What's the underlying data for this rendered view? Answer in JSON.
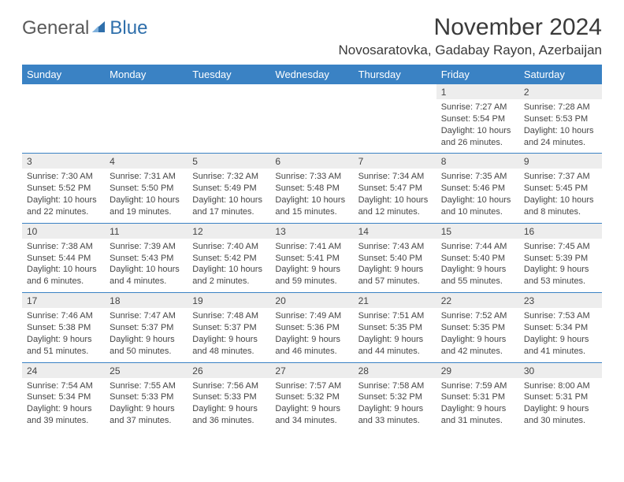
{
  "logo": {
    "word1": "General",
    "word2": "Blue"
  },
  "header": {
    "title": "November 2024",
    "location": "Novosaratovka, Gadabay Rayon, Azerbaijan"
  },
  "colors": {
    "header_bg": "#3a82c4",
    "header_text": "#ffffff",
    "daynum_bg": "#ededed",
    "border": "#3a82c4",
    "body_text": "#454545",
    "logo_gray": "#5a5a5a",
    "logo_blue": "#2f6fab"
  },
  "columns": [
    "Sunday",
    "Monday",
    "Tuesday",
    "Wednesday",
    "Thursday",
    "Friday",
    "Saturday"
  ],
  "weeks": [
    [
      {
        "blank": true
      },
      {
        "blank": true
      },
      {
        "blank": true
      },
      {
        "blank": true
      },
      {
        "blank": true
      },
      {
        "n": "1",
        "sunrise": "Sunrise: 7:27 AM",
        "sunset": "Sunset: 5:54 PM",
        "dl1": "Daylight: 10 hours",
        "dl2": "and 26 minutes."
      },
      {
        "n": "2",
        "sunrise": "Sunrise: 7:28 AM",
        "sunset": "Sunset: 5:53 PM",
        "dl1": "Daylight: 10 hours",
        "dl2": "and 24 minutes."
      }
    ],
    [
      {
        "n": "3",
        "sunrise": "Sunrise: 7:30 AM",
        "sunset": "Sunset: 5:52 PM",
        "dl1": "Daylight: 10 hours",
        "dl2": "and 22 minutes."
      },
      {
        "n": "4",
        "sunrise": "Sunrise: 7:31 AM",
        "sunset": "Sunset: 5:50 PM",
        "dl1": "Daylight: 10 hours",
        "dl2": "and 19 minutes."
      },
      {
        "n": "5",
        "sunrise": "Sunrise: 7:32 AM",
        "sunset": "Sunset: 5:49 PM",
        "dl1": "Daylight: 10 hours",
        "dl2": "and 17 minutes."
      },
      {
        "n": "6",
        "sunrise": "Sunrise: 7:33 AM",
        "sunset": "Sunset: 5:48 PM",
        "dl1": "Daylight: 10 hours",
        "dl2": "and 15 minutes."
      },
      {
        "n": "7",
        "sunrise": "Sunrise: 7:34 AM",
        "sunset": "Sunset: 5:47 PM",
        "dl1": "Daylight: 10 hours",
        "dl2": "and 12 minutes."
      },
      {
        "n": "8",
        "sunrise": "Sunrise: 7:35 AM",
        "sunset": "Sunset: 5:46 PM",
        "dl1": "Daylight: 10 hours",
        "dl2": "and 10 minutes."
      },
      {
        "n": "9",
        "sunrise": "Sunrise: 7:37 AM",
        "sunset": "Sunset: 5:45 PM",
        "dl1": "Daylight: 10 hours",
        "dl2": "and 8 minutes."
      }
    ],
    [
      {
        "n": "10",
        "sunrise": "Sunrise: 7:38 AM",
        "sunset": "Sunset: 5:44 PM",
        "dl1": "Daylight: 10 hours",
        "dl2": "and 6 minutes."
      },
      {
        "n": "11",
        "sunrise": "Sunrise: 7:39 AM",
        "sunset": "Sunset: 5:43 PM",
        "dl1": "Daylight: 10 hours",
        "dl2": "and 4 minutes."
      },
      {
        "n": "12",
        "sunrise": "Sunrise: 7:40 AM",
        "sunset": "Sunset: 5:42 PM",
        "dl1": "Daylight: 10 hours",
        "dl2": "and 2 minutes."
      },
      {
        "n": "13",
        "sunrise": "Sunrise: 7:41 AM",
        "sunset": "Sunset: 5:41 PM",
        "dl1": "Daylight: 9 hours",
        "dl2": "and 59 minutes."
      },
      {
        "n": "14",
        "sunrise": "Sunrise: 7:43 AM",
        "sunset": "Sunset: 5:40 PM",
        "dl1": "Daylight: 9 hours",
        "dl2": "and 57 minutes."
      },
      {
        "n": "15",
        "sunrise": "Sunrise: 7:44 AM",
        "sunset": "Sunset: 5:40 PM",
        "dl1": "Daylight: 9 hours",
        "dl2": "and 55 minutes."
      },
      {
        "n": "16",
        "sunrise": "Sunrise: 7:45 AM",
        "sunset": "Sunset: 5:39 PM",
        "dl1": "Daylight: 9 hours",
        "dl2": "and 53 minutes."
      }
    ],
    [
      {
        "n": "17",
        "sunrise": "Sunrise: 7:46 AM",
        "sunset": "Sunset: 5:38 PM",
        "dl1": "Daylight: 9 hours",
        "dl2": "and 51 minutes."
      },
      {
        "n": "18",
        "sunrise": "Sunrise: 7:47 AM",
        "sunset": "Sunset: 5:37 PM",
        "dl1": "Daylight: 9 hours",
        "dl2": "and 50 minutes."
      },
      {
        "n": "19",
        "sunrise": "Sunrise: 7:48 AM",
        "sunset": "Sunset: 5:37 PM",
        "dl1": "Daylight: 9 hours",
        "dl2": "and 48 minutes."
      },
      {
        "n": "20",
        "sunrise": "Sunrise: 7:49 AM",
        "sunset": "Sunset: 5:36 PM",
        "dl1": "Daylight: 9 hours",
        "dl2": "and 46 minutes."
      },
      {
        "n": "21",
        "sunrise": "Sunrise: 7:51 AM",
        "sunset": "Sunset: 5:35 PM",
        "dl1": "Daylight: 9 hours",
        "dl2": "and 44 minutes."
      },
      {
        "n": "22",
        "sunrise": "Sunrise: 7:52 AM",
        "sunset": "Sunset: 5:35 PM",
        "dl1": "Daylight: 9 hours",
        "dl2": "and 42 minutes."
      },
      {
        "n": "23",
        "sunrise": "Sunrise: 7:53 AM",
        "sunset": "Sunset: 5:34 PM",
        "dl1": "Daylight: 9 hours",
        "dl2": "and 41 minutes."
      }
    ],
    [
      {
        "n": "24",
        "sunrise": "Sunrise: 7:54 AM",
        "sunset": "Sunset: 5:34 PM",
        "dl1": "Daylight: 9 hours",
        "dl2": "and 39 minutes."
      },
      {
        "n": "25",
        "sunrise": "Sunrise: 7:55 AM",
        "sunset": "Sunset: 5:33 PM",
        "dl1": "Daylight: 9 hours",
        "dl2": "and 37 minutes."
      },
      {
        "n": "26",
        "sunrise": "Sunrise: 7:56 AM",
        "sunset": "Sunset: 5:33 PM",
        "dl1": "Daylight: 9 hours",
        "dl2": "and 36 minutes."
      },
      {
        "n": "27",
        "sunrise": "Sunrise: 7:57 AM",
        "sunset": "Sunset: 5:32 PM",
        "dl1": "Daylight: 9 hours",
        "dl2": "and 34 minutes."
      },
      {
        "n": "28",
        "sunrise": "Sunrise: 7:58 AM",
        "sunset": "Sunset: 5:32 PM",
        "dl1": "Daylight: 9 hours",
        "dl2": "and 33 minutes."
      },
      {
        "n": "29",
        "sunrise": "Sunrise: 7:59 AM",
        "sunset": "Sunset: 5:31 PM",
        "dl1": "Daylight: 9 hours",
        "dl2": "and 31 minutes."
      },
      {
        "n": "30",
        "sunrise": "Sunrise: 8:00 AM",
        "sunset": "Sunset: 5:31 PM",
        "dl1": "Daylight: 9 hours",
        "dl2": "and 30 minutes."
      }
    ]
  ]
}
